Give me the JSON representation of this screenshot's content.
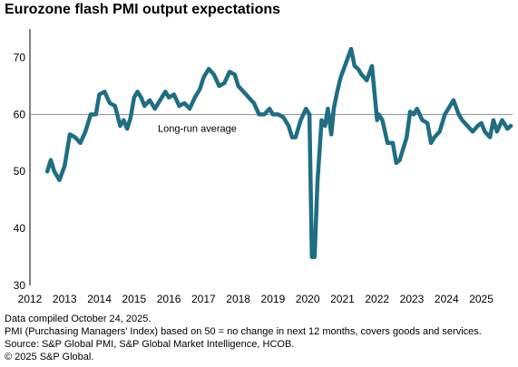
{
  "title": "Eurozone flash PMI output expectations",
  "footer": {
    "line1": "Data compiled October 24, 2025.",
    "line2": "PMI (Purchasing Managers' Index) based on 50 = no change in next 12 months, covers goods and services.",
    "line3": "Source: S&P Global PMI, S&P Global Market Intelligence, HCOB.",
    "line4": "© 2025 S&P Global."
  },
  "chart_data": {
    "type": "line",
    "title": "Eurozone flash PMI output expectations",
    "xlabel": "",
    "ylabel": "",
    "xlim": [
      2012,
      2025.9
    ],
    "ylim": [
      30,
      75
    ],
    "x_ticks": [
      "2012",
      "2013",
      "2014",
      "2015",
      "2016",
      "2017",
      "2018",
      "2019",
      "2020",
      "2021",
      "2022",
      "2023",
      "2024",
      "2025"
    ],
    "y_ticks": [
      30,
      40,
      50,
      60,
      70
    ],
    "grid": false,
    "line_color": "#1f6e83",
    "reference_line": {
      "value": 60,
      "label": "Long-run average",
      "color": "#888888"
    },
    "series": [
      {
        "x": [
          2012.5,
          2012.6,
          2012.7,
          2012.85,
          2013.0,
          2013.15,
          2013.3,
          2013.45,
          2013.6,
          2013.75,
          2013.9,
          2014.0,
          2014.15,
          2014.3,
          2014.45,
          2014.6,
          2014.7,
          2014.8,
          2014.9,
          2015.0,
          2015.1,
          2015.2,
          2015.3,
          2015.45,
          2015.6,
          2015.75,
          2015.9,
          2016.0,
          2016.15,
          2016.3,
          2016.45,
          2016.6,
          2016.75,
          2016.9,
          2017.0,
          2017.15,
          2017.3,
          2017.45,
          2017.6,
          2017.75,
          2017.9,
          2018.0,
          2018.15,
          2018.3,
          2018.45,
          2018.6,
          2018.75,
          2018.9,
          2019.0,
          2019.15,
          2019.3,
          2019.45,
          2019.55,
          2019.65,
          2019.8,
          2019.95,
          2020.05,
          2020.12,
          2020.2,
          2020.28,
          2020.4,
          2020.5,
          2020.58,
          2020.68,
          2020.75,
          2020.85,
          2020.95,
          2021.1,
          2021.25,
          2021.35,
          2021.45,
          2021.55,
          2021.7,
          2021.85,
          2022.0,
          2022.05,
          2022.15,
          2022.3,
          2022.45,
          2022.55,
          2022.65,
          2022.75,
          2022.85,
          2022.95,
          2023.05,
          2023.15,
          2023.3,
          2023.45,
          2023.55,
          2023.65,
          2023.8,
          2023.95,
          2024.05,
          2024.2,
          2024.35,
          2024.45,
          2024.6,
          2024.75,
          2024.9,
          2025.0,
          2025.1,
          2025.25,
          2025.35,
          2025.45,
          2025.6,
          2025.75,
          2025.85
        ],
        "values": [
          50.0,
          52.0,
          50.0,
          48.5,
          51.0,
          56.5,
          56.0,
          55.0,
          57.0,
          60.0,
          60.0,
          63.5,
          64.0,
          62.0,
          61.5,
          58.0,
          59.0,
          57.5,
          59.5,
          63.0,
          64.0,
          63.0,
          61.5,
          62.5,
          61.0,
          62.5,
          64.0,
          63.0,
          63.5,
          61.5,
          62.0,
          61.0,
          63.0,
          64.5,
          66.5,
          68.0,
          67.0,
          65.0,
          65.5,
          67.5,
          67.0,
          65.0,
          64.0,
          63.0,
          62.0,
          60.0,
          60.0,
          61.0,
          60.0,
          60.0,
          59.5,
          58.0,
          56.0,
          56.0,
          59.0,
          61.0,
          60.0,
          35.0,
          35.0,
          48.0,
          59.0,
          58.0,
          61.0,
          56.5,
          61.0,
          64.0,
          66.5,
          69.0,
          71.5,
          68.5,
          68.0,
          67.0,
          66.0,
          68.5,
          59.0,
          60.0,
          59.0,
          55.0,
          55.0,
          51.5,
          52.0,
          54.0,
          56.0,
          60.5,
          60.0,
          61.0,
          59.0,
          58.5,
          55.0,
          56.0,
          57.0,
          60.0,
          61.0,
          62.5,
          60.0,
          59.0,
          58.0,
          57.0,
          58.0,
          58.5,
          57.0,
          56.0,
          59.0,
          57.0,
          59.0,
          57.5,
          58.0
        ]
      }
    ]
  }
}
